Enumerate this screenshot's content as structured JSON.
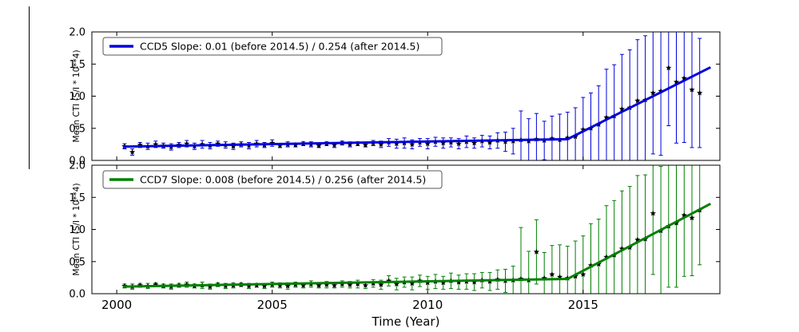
{
  "chart_data": {
    "type": "line",
    "subtype": "errorbar-scatter-with-piecewise-fit",
    "xlabel": "Time (Year)",
    "ylabel": "Mean CTI (S/I * 10**4)",
    "xlim": [
      1999.2,
      2019.4
    ],
    "ylim": [
      0.0,
      2.0
    ],
    "x_ticks": [
      2000,
      2005,
      2010,
      2015
    ],
    "y_ticks": [
      0.0,
      0.5,
      1.0,
      1.5,
      2.0
    ],
    "grid": false,
    "legend_position": "upper-left-inside",
    "marker": "black-star",
    "x": [
      2000.25,
      2000.5,
      2000.75,
      2001.0,
      2001.25,
      2001.5,
      2001.75,
      2002.0,
      2002.25,
      2002.5,
      2002.75,
      2003.0,
      2003.25,
      2003.5,
      2003.75,
      2004.0,
      2004.25,
      2004.5,
      2004.75,
      2005.0,
      2005.25,
      2005.5,
      2005.75,
      2006.0,
      2006.25,
      2006.5,
      2006.75,
      2007.0,
      2007.25,
      2007.5,
      2007.75,
      2008.0,
      2008.25,
      2008.5,
      2008.75,
      2009.0,
      2009.25,
      2009.5,
      2009.75,
      2010.0,
      2010.25,
      2010.5,
      2010.75,
      2011.0,
      2011.25,
      2011.5,
      2011.75,
      2012.0,
      2012.25,
      2012.5,
      2012.75,
      2013.0,
      2013.25,
      2013.5,
      2013.75,
      2014.0,
      2014.25,
      2014.5,
      2014.75,
      2015.0,
      2015.25,
      2015.5,
      2015.75,
      2016.0,
      2016.25,
      2016.5,
      2016.75,
      2017.0,
      2017.25,
      2017.5,
      2017.75,
      2018.0,
      2018.25,
      2018.5,
      2018.75
    ],
    "series": [
      {
        "name": "CCD5",
        "color": "#0000dd",
        "legend": "CCD5 Slope: 0.01 (before 2014.5) / 0.254 (after 2014.5)",
        "fit": {
          "x_start": 2000.2,
          "y_start": 0.215,
          "x_break": 2014.5,
          "y_break": 0.33,
          "x_end": 2019.1,
          "y_end": 1.45,
          "slope_before": 0.01,
          "slope_after": 0.254
        },
        "y": [
          0.22,
          0.13,
          0.24,
          0.22,
          0.25,
          0.23,
          0.21,
          0.24,
          0.26,
          0.22,
          0.25,
          0.23,
          0.26,
          0.24,
          0.22,
          0.25,
          0.23,
          0.26,
          0.24,
          0.27,
          0.23,
          0.25,
          0.24,
          0.26,
          0.25,
          0.23,
          0.26,
          0.24,
          0.27,
          0.25,
          0.26,
          0.24,
          0.27,
          0.25,
          0.28,
          0.26,
          0.27,
          0.25,
          0.28,
          0.26,
          0.29,
          0.27,
          0.28,
          0.26,
          0.29,
          0.27,
          0.3,
          0.28,
          0.31,
          0.29,
          0.3,
          0.32,
          0.3,
          0.33,
          0.31,
          0.34,
          0.32,
          0.35,
          0.37,
          0.48,
          0.5,
          0.56,
          0.67,
          0.69,
          0.8,
          0.82,
          0.93,
          0.94,
          1.05,
          1.08,
          1.44,
          1.22,
          1.28,
          1.1,
          1.05
        ],
        "yerr": [
          0.04,
          0.05,
          0.04,
          0.05,
          0.05,
          0.04,
          0.05,
          0.04,
          0.05,
          0.05,
          0.06,
          0.05,
          0.04,
          0.05,
          0.05,
          0.04,
          0.05,
          0.05,
          0.04,
          0.05,
          0.03,
          0.04,
          0.03,
          0.03,
          0.04,
          0.03,
          0.03,
          0.04,
          0.03,
          0.04,
          0.03,
          0.03,
          0.04,
          0.05,
          0.06,
          0.07,
          0.08,
          0.07,
          0.06,
          0.08,
          0.07,
          0.08,
          0.07,
          0.08,
          0.09,
          0.08,
          0.09,
          0.1,
          0.12,
          0.15,
          0.2,
          0.45,
          0.35,
          0.4,
          0.3,
          0.35,
          0.4,
          0.4,
          0.45,
          0.5,
          0.55,
          0.6,
          0.75,
          0.8,
          0.85,
          0.9,
          0.95,
          1.0,
          0.95,
          1.0,
          0.9,
          0.95,
          1.0,
          0.9,
          0.85
        ]
      },
      {
        "name": "CCD7",
        "color": "#008000",
        "legend": "CCD7 Slope: 0.008 (before 2014.5) / 0.256 (after 2014.5)",
        "fit": {
          "x_start": 2000.2,
          "y_start": 0.11,
          "x_break": 2014.5,
          "y_break": 0.23,
          "x_end": 2019.1,
          "y_end": 1.4,
          "slope_before": 0.008,
          "slope_after": 0.256
        },
        "y": [
          0.12,
          0.11,
          0.13,
          0.12,
          0.14,
          0.12,
          0.11,
          0.13,
          0.14,
          0.12,
          0.13,
          0.11,
          0.14,
          0.12,
          0.13,
          0.14,
          0.12,
          0.13,
          0.12,
          0.14,
          0.13,
          0.12,
          0.14,
          0.13,
          0.15,
          0.13,
          0.14,
          0.13,
          0.15,
          0.14,
          0.15,
          0.13,
          0.16,
          0.14,
          0.2,
          0.15,
          0.18,
          0.16,
          0.2,
          0.17,
          0.19,
          0.17,
          0.2,
          0.18,
          0.19,
          0.18,
          0.21,
          0.19,
          0.22,
          0.2,
          0.21,
          0.23,
          0.21,
          0.65,
          0.24,
          0.3,
          0.26,
          0.24,
          0.27,
          0.3,
          0.44,
          0.46,
          0.57,
          0.6,
          0.7,
          0.72,
          0.84,
          0.85,
          1.25,
          0.98,
          1.05,
          1.1,
          1.22,
          1.18,
          1.3
        ],
        "yerr": [
          0.03,
          0.04,
          0.03,
          0.04,
          0.03,
          0.03,
          0.04,
          0.03,
          0.04,
          0.03,
          0.05,
          0.04,
          0.03,
          0.04,
          0.04,
          0.03,
          0.04,
          0.03,
          0.04,
          0.04,
          0.04,
          0.05,
          0.04,
          0.04,
          0.05,
          0.04,
          0.05,
          0.04,
          0.05,
          0.05,
          0.06,
          0.05,
          0.06,
          0.07,
          0.08,
          0.09,
          0.08,
          0.1,
          0.09,
          0.1,
          0.11,
          0.1,
          0.12,
          0.11,
          0.12,
          0.13,
          0.12,
          0.14,
          0.15,
          0.18,
          0.22,
          0.8,
          0.45,
          0.5,
          0.4,
          0.45,
          0.5,
          0.5,
          0.55,
          0.6,
          0.65,
          0.7,
          0.8,
          0.85,
          0.9,
          0.95,
          1.0,
          1.0,
          0.95,
          1.0,
          0.95,
          1.0,
          0.95,
          0.9,
          0.85
        ]
      }
    ]
  }
}
